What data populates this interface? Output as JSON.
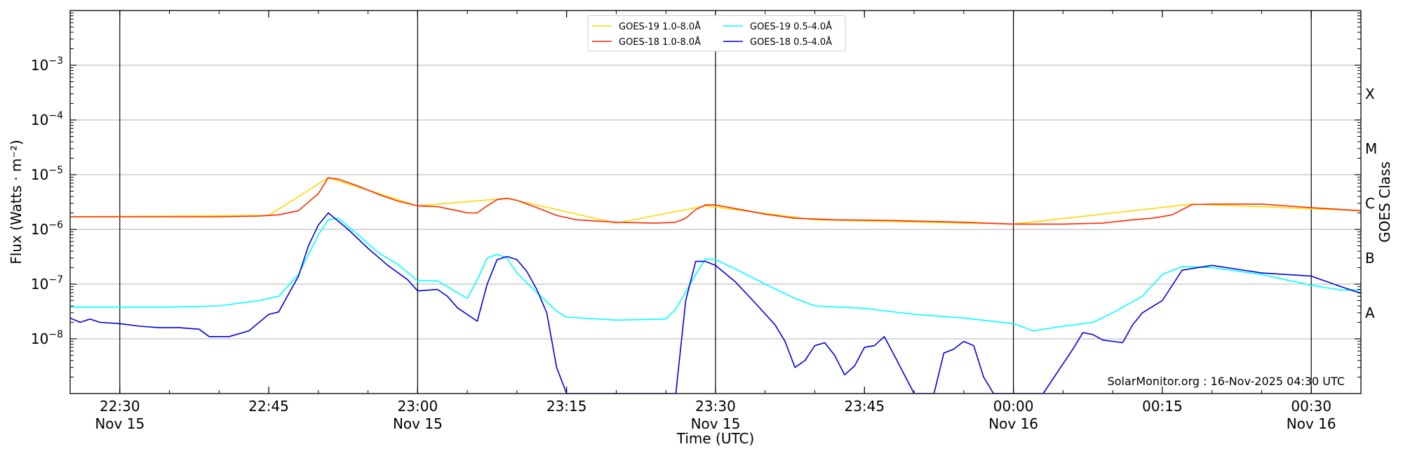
{
  "chart_data": {
    "type": "line",
    "xlabel": "Time (UTC)",
    "ylabel": "Flux (Watts · m⁻²)",
    "ylabel_right": "GOES Class",
    "credit": "SolarMonitor.org : 16-Nov-2025 04:30 UTC",
    "y_scale": "log",
    "ylim": [
      1e-09,
      0.01
    ],
    "xlim_minutes": [
      22.4167,
      22.5417,
      22.5,
      22.5
    ],
    "x_range": [
      "2025-11-15 22:25",
      "2025-11-16 00:35"
    ],
    "grid": "horizontal",
    "legend_placement": "top-center",
    "y_ticks": [
      {
        "value": 1e-08,
        "base": "10",
        "exp": "−8"
      },
      {
        "value": 1e-07,
        "base": "10",
        "exp": "−7"
      },
      {
        "value": 1e-06,
        "base": "10",
        "exp": "−6"
      },
      {
        "value": 1e-05,
        "base": "10",
        "exp": "−5"
      },
      {
        "value": 0.0001,
        "base": "10",
        "exp": "−4"
      },
      {
        "value": 0.001,
        "base": "10",
        "exp": "−3"
      }
    ],
    "x_ticks": [
      {
        "t": "2025-11-15 22:30",
        "label": "22:30",
        "sub": "Nov 15"
      },
      {
        "t": "2025-11-15 22:45",
        "label": "22:45",
        "sub": ""
      },
      {
        "t": "2025-11-15 23:00",
        "label": "23:00",
        "sub": "Nov 15"
      },
      {
        "t": "2025-11-15 23:15",
        "label": "23:15",
        "sub": ""
      },
      {
        "t": "2025-11-15 23:30",
        "label": "23:30",
        "sub": "Nov 15"
      },
      {
        "t": "2025-11-15 23:45",
        "label": "23:45",
        "sub": ""
      },
      {
        "t": "2025-11-16 00:00",
        "label": "00:00",
        "sub": "Nov 16"
      },
      {
        "t": "2025-11-16 00:15",
        "label": "00:15",
        "sub": ""
      },
      {
        "t": "2025-11-16 00:30",
        "label": "00:30",
        "sub": "Nov 16"
      }
    ],
    "vertical_lines": [
      "2025-11-15 22:30",
      "2025-11-15 23:00",
      "2025-11-15 23:30",
      "2025-11-16 00:00",
      "2025-11-16 00:30"
    ],
    "goes_classes": [
      {
        "label": "A",
        "value": 3e-08
      },
      {
        "label": "B",
        "value": 3e-07
      },
      {
        "label": "C",
        "value": 3e-06
      },
      {
        "label": "M",
        "value": 3e-05
      },
      {
        "label": "X",
        "value": 0.0003
      }
    ],
    "series": [
      {
        "name": "GOES-19 1.0-8.0Å",
        "color": "#FFD700",
        "x": [
          "2025-11-15 22:25",
          "2025-11-15 22:45",
          "2025-11-15 22:51",
          "2025-11-15 23:00",
          "2025-11-15 23:09",
          "2025-11-15 23:20",
          "2025-11-15 23:29",
          "2025-11-15 23:40",
          "2025-11-16 00:00",
          "2025-11-16 00:18",
          "2025-11-16 00:35"
        ],
        "values": [
          1.7e-06,
          1.8e-06,
          8.8e-06,
          2.7e-06,
          3.7e-06,
          1.3e-06,
          2.7e-06,
          1.5e-06,
          1.25e-06,
          2.9e-06,
          2.2e-06
        ]
      },
      {
        "name": "GOES-18 1.0-8.0Å",
        "color": "#FF2A00",
        "x": [
          "2025-11-15 22:25",
          "2025-11-15 22:30",
          "2025-11-15 22:35",
          "2025-11-15 22:40",
          "2025-11-15 22:44",
          "2025-11-15 22:46",
          "2025-11-15 22:48",
          "2025-11-15 22:50",
          "2025-11-15 22:51",
          "2025-11-15 22:52",
          "2025-11-15 22:54",
          "2025-11-15 22:56",
          "2025-11-15 22:58",
          "2025-11-15 23:00",
          "2025-11-15 23:02",
          "2025-11-15 23:04",
          "2025-11-15 23:05",
          "2025-11-15 23:06",
          "2025-11-15 23:07",
          "2025-11-15 23:08",
          "2025-11-15 23:09",
          "2025-11-15 23:10",
          "2025-11-15 23:12",
          "2025-11-15 23:14",
          "2025-11-15 23:16",
          "2025-11-15 23:20",
          "2025-11-15 23:24",
          "2025-11-15 23:26",
          "2025-11-15 23:27",
          "2025-11-15 23:28",
          "2025-11-15 23:29",
          "2025-11-15 23:30",
          "2025-11-15 23:32",
          "2025-11-15 23:35",
          "2025-11-15 23:38",
          "2025-11-15 23:42",
          "2025-11-15 23:48",
          "2025-11-15 23:55",
          "2025-11-16 00:00",
          "2025-11-16 00:05",
          "2025-11-16 00:09",
          "2025-11-16 00:12",
          "2025-11-16 00:14",
          "2025-11-16 00:16",
          "2025-11-16 00:18",
          "2025-11-16 00:20",
          "2025-11-16 00:25",
          "2025-11-16 00:30",
          "2025-11-16 00:35"
        ],
        "values": [
          1.7e-06,
          1.7e-06,
          1.7e-06,
          1.7e-06,
          1.75e-06,
          1.85e-06,
          2.2e-06,
          4.5e-06,
          8.8e-06,
          8.3e-06,
          6.2e-06,
          4.4e-06,
          3.3e-06,
          2.7e-06,
          2.6e-06,
          2.2e-06,
          2e-06,
          2e-06,
          2.7e-06,
          3.5e-06,
          3.7e-06,
          3.4e-06,
          2.5e-06,
          1.8e-06,
          1.5e-06,
          1.35e-06,
          1.3e-06,
          1.35e-06,
          1.6e-06,
          2.3e-06,
          2.8e-06,
          2.8e-06,
          2.4e-06,
          1.9e-06,
          1.6e-06,
          1.5e-06,
          1.45e-06,
          1.35e-06,
          1.25e-06,
          1.25e-06,
          1.3e-06,
          1.5e-06,
          1.6e-06,
          1.85e-06,
          2.85e-06,
          2.9e-06,
          2.9e-06,
          2.5e-06,
          2.2e-06
        ]
      },
      {
        "name": "GOES-19 0.5-4.0Å",
        "color": "#00FFFF",
        "x": [
          "2025-11-15 22:25",
          "2025-11-15 22:30",
          "2025-11-15 22:35",
          "2025-11-15 22:40",
          "2025-11-15 22:44",
          "2025-11-15 22:46",
          "2025-11-15 22:48",
          "2025-11-15 22:50",
          "2025-11-15 22:51",
          "2025-11-15 22:52",
          "2025-11-15 22:54",
          "2025-11-15 22:56",
          "2025-11-15 22:58",
          "2025-11-15 23:00",
          "2025-11-15 23:02",
          "2025-11-15 23:04",
          "2025-11-15 23:05",
          "2025-11-15 23:06",
          "2025-11-15 23:07",
          "2025-11-15 23:08",
          "2025-11-15 23:09",
          "2025-11-15 23:10",
          "2025-11-15 23:12",
          "2025-11-15 23:14",
          "2025-11-15 23:15",
          "2025-11-15 23:20",
          "2025-11-15 23:25",
          "2025-11-15 23:26",
          "2025-11-15 23:28",
          "2025-11-15 23:29",
          "2025-11-15 23:30",
          "2025-11-15 23:32",
          "2025-11-15 23:35",
          "2025-11-15 23:38",
          "2025-11-15 23:40",
          "2025-11-15 23:45",
          "2025-11-15 23:50",
          "2025-11-15 23:55",
          "2025-11-16 00:00",
          "2025-11-16 00:02",
          "2025-11-16 00:05",
          "2025-11-16 00:08",
          "2025-11-16 00:10",
          "2025-11-16 00:13",
          "2025-11-16 00:15",
          "2025-11-16 00:17",
          "2025-11-16 00:20",
          "2025-11-16 00:25",
          "2025-11-16 00:30",
          "2025-11-16 00:33",
          "2025-11-16 00:35"
        ],
        "values": [
          3.8e-08,
          3.8e-08,
          3.8e-08,
          4e-08,
          5e-08,
          6e-08,
          1.5e-07,
          8e-07,
          1.5e-06,
          1.6e-06,
          8e-07,
          3.8e-07,
          2.3e-07,
          1.15e-07,
          1.15e-07,
          7e-08,
          5.5e-08,
          1.2e-07,
          3e-07,
          3.5e-07,
          3e-07,
          1.6e-07,
          7e-08,
          3.2e-08,
          2.5e-08,
          2.2e-08,
          2.3e-08,
          3.5e-08,
          1.5e-07,
          2.9e-07,
          2.8e-07,
          1.9e-07,
          1e-07,
          5.5e-08,
          4e-08,
          3.6e-08,
          2.8e-08,
          2.4e-08,
          1.9e-08,
          1.4e-08,
          1.7e-08,
          2e-08,
          3e-08,
          6e-08,
          1.5e-07,
          2.1e-07,
          2e-07,
          1.5e-07,
          9.5e-08,
          7.8e-08,
          7.8e-08
        ]
      },
      {
        "name": "GOES-18 0.5-4.0Å",
        "color": "#0000DD",
        "x": [
          "2025-11-15 22:25",
          "2025-11-15 22:26",
          "2025-11-15 22:27",
          "2025-11-15 22:28",
          "2025-11-15 22:30",
          "2025-11-15 22:32",
          "2025-11-15 22:34",
          "2025-11-15 22:36",
          "2025-11-15 22:38",
          "2025-11-15 22:39",
          "2025-11-15 22:41",
          "2025-11-15 22:43",
          "2025-11-15 22:45",
          "2025-11-15 22:46",
          "2025-11-15 22:48",
          "2025-11-15 22:49",
          "2025-11-15 22:50",
          "2025-11-15 22:51",
          "2025-11-15 22:53",
          "2025-11-15 22:55",
          "2025-11-15 22:57",
          "2025-11-15 22:59",
          "2025-11-15 23:00",
          "2025-11-15 23:02",
          "2025-11-15 23:03",
          "2025-11-15 23:04",
          "2025-11-15 23:06",
          "2025-11-15 23:07",
          "2025-11-15 23:08",
          "2025-11-15 23:09",
          "2025-11-15 23:10",
          "2025-11-15 23:11",
          "2025-11-15 23:12",
          "2025-11-15 23:13",
          "2025-11-15 23:14",
          "2025-11-15 23:15",
          "2025-11-15 23:26",
          "2025-11-15 23:27",
          "2025-11-15 23:28",
          "2025-11-15 23:29",
          "2025-11-15 23:30",
          "2025-11-15 23:32",
          "2025-11-15 23:34",
          "2025-11-15 23:36",
          "2025-11-15 23:37",
          "2025-11-15 23:38",
          "2025-11-15 23:39",
          "2025-11-15 23:40",
          "2025-11-15 23:41",
          "2025-11-15 23:42",
          "2025-11-15 23:43",
          "2025-11-15 23:44",
          "2025-11-15 23:45",
          "2025-11-15 23:46",
          "2025-11-15 23:47",
          "2025-11-15 23:48",
          "2025-11-15 23:50",
          "2025-11-15 23:52",
          "2025-11-15 23:53",
          "2025-11-15 23:54",
          "2025-11-15 23:55",
          "2025-11-15 23:56",
          "2025-11-15 23:57",
          "2025-11-15 23:58",
          "2025-11-16 00:00",
          "2025-11-16 00:01",
          "2025-11-16 00:03",
          "2025-11-16 00:05",
          "2025-11-16 00:06",
          "2025-11-16 00:07",
          "2025-11-16 00:08",
          "2025-11-16 00:09",
          "2025-11-16 00:11",
          "2025-11-16 00:12",
          "2025-11-16 00:13",
          "2025-11-16 00:15",
          "2025-11-16 00:17",
          "2025-11-16 00:20",
          "2025-11-16 00:25",
          "2025-11-16 00:30",
          "2025-11-16 00:33",
          "2025-11-16 00:35"
        ],
        "values": [
          2.4e-08,
          2e-08,
          2.3e-08,
          2e-08,
          1.9e-08,
          1.7e-08,
          1.6e-08,
          1.6e-08,
          1.5e-08,
          1.1e-08,
          1.1e-08,
          1.4e-08,
          2.8e-08,
          3.1e-08,
          1.4e-07,
          5e-07,
          1.2e-06,
          2e-06,
          1e-06,
          4.5e-07,
          2.2e-07,
          1.2e-07,
          7.5e-08,
          8e-08,
          6e-08,
          3.7e-08,
          2.1e-08,
          1e-07,
          2.8e-07,
          3.2e-07,
          2.8e-07,
          1.7e-07,
          8e-08,
          3e-08,
          3e-09,
          1e-09,
          1e-09,
          5e-08,
          2.6e-07,
          2.6e-07,
          2.2e-07,
          1.1e-07,
          4.5e-08,
          1.8e-08,
          9e-09,
          3e-09,
          4e-09,
          7.5e-09,
          8.5e-09,
          5e-09,
          2.2e-09,
          3.2e-09,
          7e-09,
          7.5e-09,
          1.1e-08,
          5e-09,
          1e-09,
          1e-09,
          5.5e-09,
          6.5e-09,
          9e-09,
          7.5e-09,
          2e-09,
          1e-09,
          1e-09,
          1e-09,
          1e-09,
          3.5e-09,
          6.5e-09,
          1.3e-08,
          1.2e-08,
          9.5e-09,
          8.5e-09,
          1.8e-08,
          3e-08,
          5e-08,
          1.8e-07,
          2.2e-07,
          1.6e-07,
          1.4e-07,
          9e-08,
          6.8e-08
        ]
      }
    ]
  }
}
